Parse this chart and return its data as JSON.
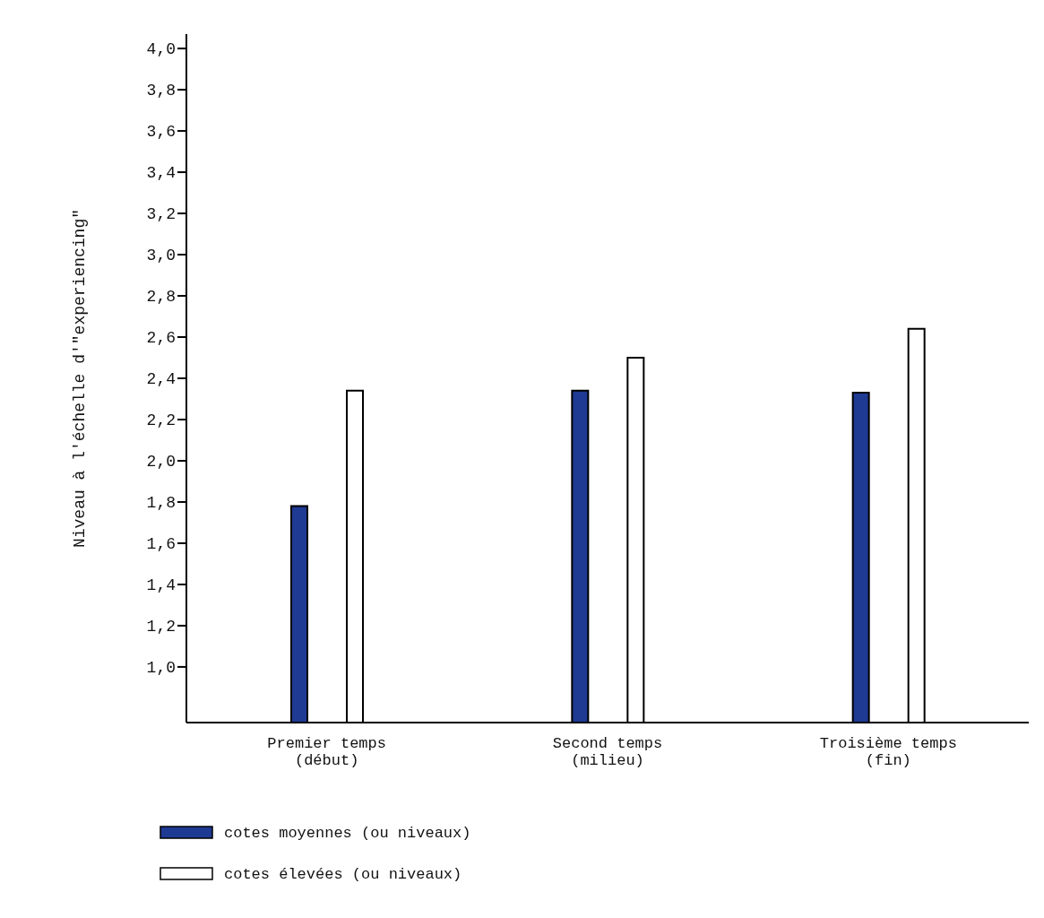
{
  "chart_data": {
    "type": "bar",
    "ylabel": "Niveau à l'échelle d'\"experiencing\"",
    "categories": [
      "Premier temps\n(début)",
      "Second temps\n(milieu)",
      "Troisième temps\n(fin)"
    ],
    "series": [
      {
        "name": "cotes moyennes (ou niveaux)",
        "color": "#1f3a93",
        "values": [
          1.78,
          2.34,
          2.33
        ]
      },
      {
        "name": "cotes élevées (ou niveaux)",
        "color": "#ffffff",
        "values": [
          2.34,
          2.5,
          2.64
        ]
      }
    ],
    "ylim": [
      0.73,
      4.07
    ],
    "yticks": [
      {
        "value": 1,
        "label": "1,0"
      },
      {
        "value": 1.2,
        "label": "1,2"
      },
      {
        "value": 1.4,
        "label": "1,4"
      },
      {
        "value": 1.6,
        "label": "1,6"
      },
      {
        "value": 1.8,
        "label": "1,8"
      },
      {
        "value": 2,
        "label": "2,0"
      },
      {
        "value": 2.2,
        "label": "2,2"
      },
      {
        "value": 2.4,
        "label": "2,4"
      },
      {
        "value": 2.6,
        "label": "2,6"
      },
      {
        "value": 2.8,
        "label": "2,8"
      },
      {
        "value": 3,
        "label": "3,0"
      },
      {
        "value": 3.2,
        "label": "3,2"
      },
      {
        "value": 3.4,
        "label": "3,4"
      },
      {
        "value": 3.6,
        "label": "3,6"
      },
      {
        "value": 3.8,
        "label": "3,8"
      },
      {
        "value": 4,
        "label": "4,0"
      }
    ],
    "legend": "bottom"
  }
}
